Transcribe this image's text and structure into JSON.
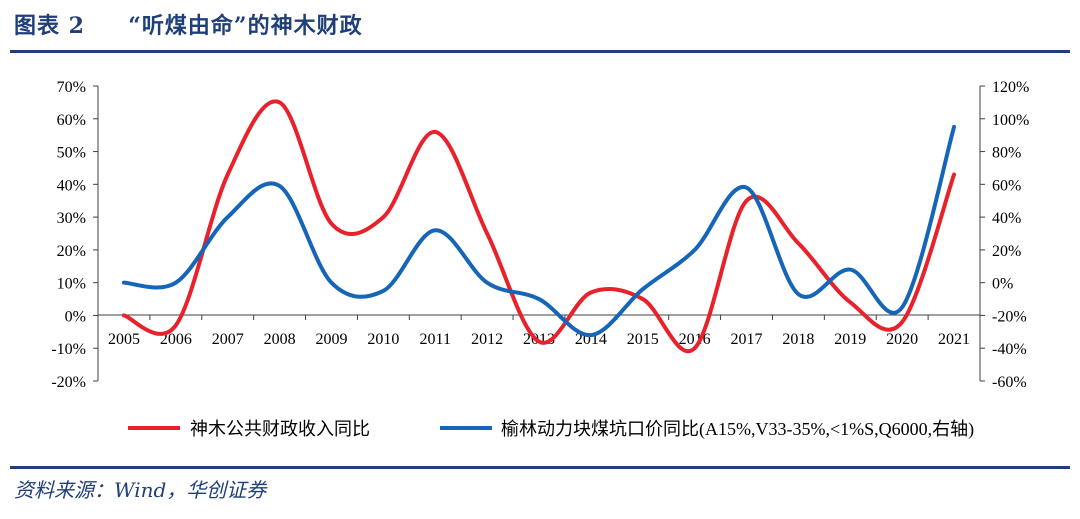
{
  "header": {
    "figure_label": "图表 2",
    "figure_title": "“听煤由命”的神木财政"
  },
  "footer": {
    "source": "资料来源：Wind，华创证券"
  },
  "chart_data": {
    "type": "line",
    "categories": [
      "2005",
      "2006",
      "2007",
      "2008",
      "2009",
      "2010",
      "2011",
      "2012",
      "2013",
      "2014",
      "2015",
      "2016",
      "2017",
      "2018",
      "2019",
      "2020",
      "2021"
    ],
    "left_axis": {
      "ylim": [
        -20,
        70
      ],
      "ticks": [
        "-20%",
        "-10%",
        "0%",
        "10%",
        "20%",
        "30%",
        "40%",
        "50%",
        "60%",
        "70%"
      ]
    },
    "right_axis": {
      "ylim": [
        -60,
        120
      ],
      "ticks": [
        "-60%",
        "-40%",
        "-20%",
        "0%",
        "20%",
        "40%",
        "60%",
        "80%",
        "100%",
        "120%"
      ]
    },
    "series": [
      {
        "name": "神木公共财政收入同比",
        "axis": "left",
        "color": "#e8212b",
        "values": [
          0,
          -3,
          43,
          65,
          28,
          30,
          56,
          25,
          -8,
          7,
          5,
          -10,
          35,
          22,
          4,
          -2,
          43
        ]
      },
      {
        "name": "榆林动力块煤坑口价同比(A15%,V33-35%,<1%S,Q6000,右轴)",
        "axis": "right",
        "color": "#1565b8",
        "values": [
          0,
          0,
          40,
          59,
          0,
          -5,
          32,
          0,
          -10,
          -32,
          -4,
          20,
          58,
          -7,
          8,
          -15,
          95
        ]
      }
    ],
    "legend_position": "bottom",
    "grid": false
  }
}
